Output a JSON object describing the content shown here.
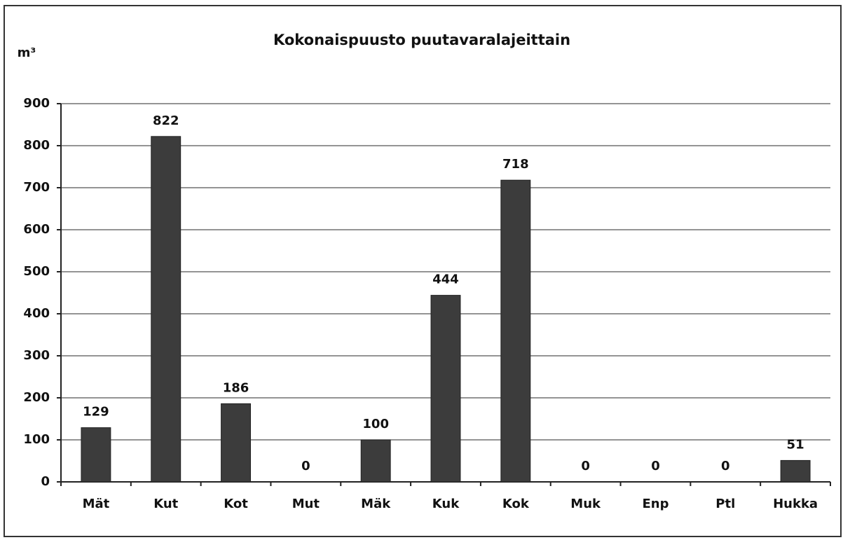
{
  "chart_data": {
    "type": "bar",
    "title": "Kokonaispuusto puutavaralajeittain",
    "y_label": "m³",
    "categories": [
      "Mät",
      "Kut",
      "Kot",
      "Mut",
      "Mäk",
      "Kuk",
      "Kok",
      "Muk",
      "Enp",
      "Ptl",
      "Hukka"
    ],
    "values": [
      129,
      822,
      186,
      0,
      100,
      444,
      718,
      0,
      0,
      0,
      51
    ],
    "color": "#3c3c3c",
    "ylim": [
      0,
      900
    ],
    "yticks": [
      0,
      100,
      200,
      300,
      400,
      500,
      600,
      700,
      800,
      900
    ],
    "grid": true
  }
}
